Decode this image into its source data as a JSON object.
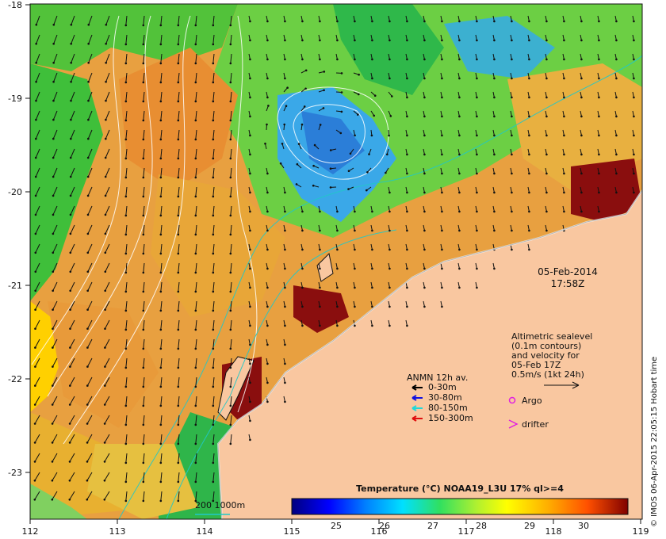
{
  "axes": {
    "x_ticks": [
      "112",
      "113",
      "114",
      "115",
      "116",
      "117",
      "118",
      "119"
    ],
    "y_ticks": [
      "-18",
      "-19",
      "-20",
      "-21",
      "-22",
      "-23"
    ]
  },
  "stamp": {
    "date": "05-Feb-2014",
    "time": "17:58Z"
  },
  "altimetry": {
    "lines": [
      "Altimetric sealevel",
      "(0.1m contours)",
      "and velocity for",
      "05-Feb 17Z",
      "0.5m/s (1kt 24h)"
    ]
  },
  "anmn": {
    "title": "ANMN 12h av.",
    "items": [
      {
        "label": "0-30m",
        "color": "#000000"
      },
      {
        "label": "30-80m",
        "color": "#1010e0"
      },
      {
        "label": "80-150m",
        "color": "#20d8d8"
      },
      {
        "label": "150-300m",
        "color": "#e01010"
      }
    ]
  },
  "markers": {
    "argo": {
      "label": "Argo",
      "color": "#e020e0"
    },
    "drifter": {
      "label": "drifter",
      "color": "#e020e0"
    }
  },
  "isobath": {
    "label": "200  1000m",
    "color": "#20c8c8"
  },
  "colorbar": {
    "title": "Temperature (°C) NOAA19_L3U 17% ql>=4",
    "ticks": [
      "25",
      "26",
      "27",
      "28",
      "29",
      "30"
    ]
  },
  "credit": "© IMOS 06-Apr-2015 22:05:15 Hobart time",
  "colors": {
    "land": "#f9c7a0",
    "sst_scale": [
      "#00007f",
      "#0000ff",
      "#0080ff",
      "#00ffff",
      "#40ff80",
      "#c0ff40",
      "#ffff00",
      "#ff9000",
      "#ff2000",
      "#800000"
    ]
  }
}
